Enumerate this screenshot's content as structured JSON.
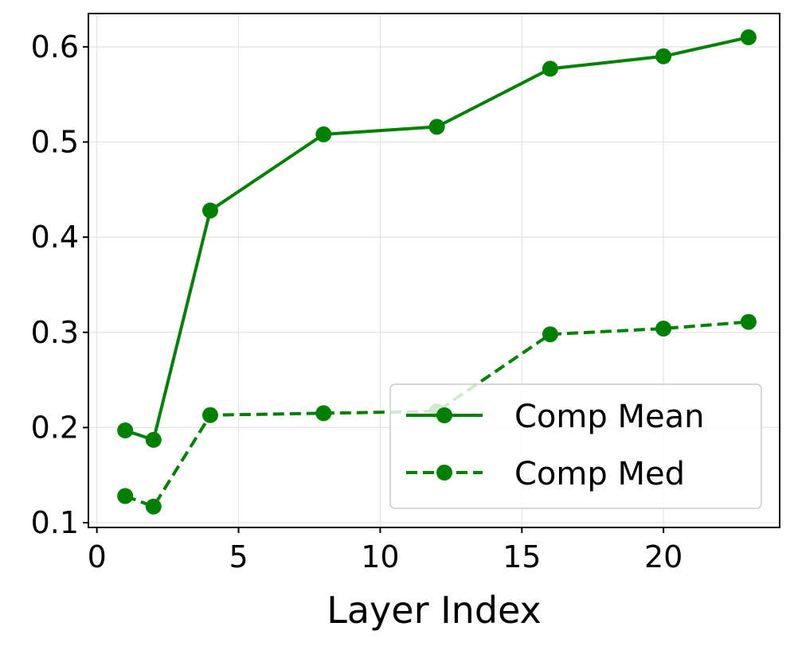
{
  "chart_data": {
    "type": "line",
    "xlabel": "Layer Index",
    "ylabel": "",
    "xlim": [
      -0.3,
      24.1
    ],
    "ylim": [
      0.095,
      0.635
    ],
    "xticks": [
      0,
      5,
      10,
      15,
      20
    ],
    "yticks": [
      0.1,
      0.2,
      0.3,
      0.4,
      0.5,
      0.6
    ],
    "xtick_labels": [
      "0",
      "5",
      "10",
      "15",
      "20"
    ],
    "ytick_labels": [
      "0.1",
      "0.2",
      "0.3",
      "0.4",
      "0.5",
      "0.6"
    ],
    "grid": true,
    "legend_position": "lower-right",
    "x": [
      1,
      2,
      4,
      8,
      12,
      16,
      20,
      23
    ],
    "series": [
      {
        "name": "Comp Mean",
        "color": "#008000",
        "linestyle": "solid",
        "marker": "circle",
        "values": [
          0.197,
          0.187,
          0.428,
          0.508,
          0.516,
          0.577,
          0.59,
          0.61
        ]
      },
      {
        "name": "Comp Med",
        "color": "#008000",
        "linestyle": "dashed",
        "marker": "circle",
        "values": [
          0.128,
          0.117,
          0.213,
          0.215,
          0.217,
          0.298,
          0.304,
          0.311
        ]
      }
    ]
  }
}
